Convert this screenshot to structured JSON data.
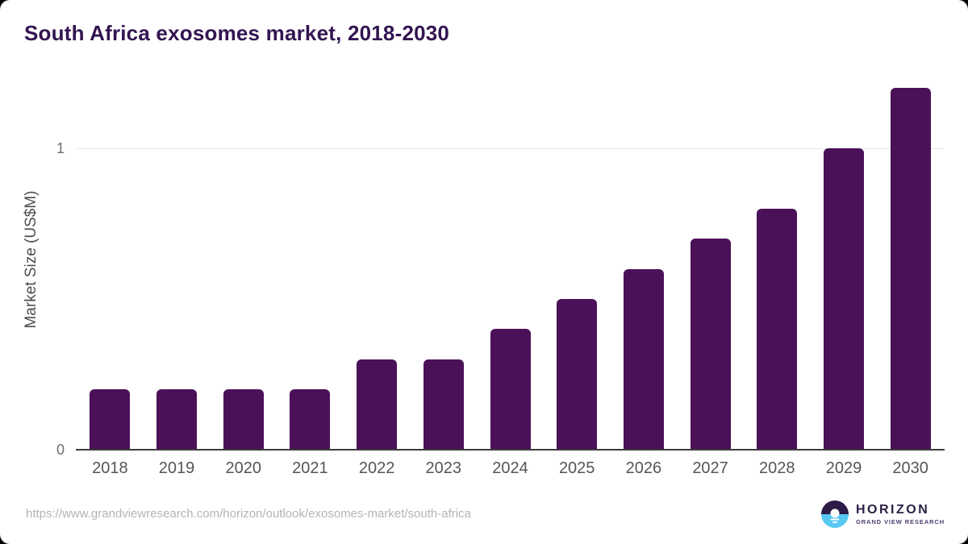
{
  "header": {
    "title": "South Africa exosomes market, 2018-2030"
  },
  "chart_data": {
    "type": "bar",
    "title": "South Africa exosomes market, 2018-2030",
    "categories": [
      "2018",
      "2019",
      "2020",
      "2021",
      "2022",
      "2023",
      "2024",
      "2025",
      "2026",
      "2027",
      "2028",
      "2029",
      "2030"
    ],
    "values": [
      0.2,
      0.2,
      0.2,
      0.2,
      0.3,
      0.3,
      0.4,
      0.5,
      0.6,
      0.7,
      0.8,
      1.0,
      1.2
    ],
    "xlabel": "",
    "ylabel": "Market Size (US$M)",
    "ylim": [
      0,
      1.2
    ],
    "yticks": [
      0,
      1
    ],
    "grid": "single horizontal gridline at y=1",
    "legend_position": "none",
    "bar_color": "#4b1158"
  },
  "y_axis": {
    "label": "Market Size (US$M)",
    "tick_top": "1",
    "tick_bottom": "0"
  },
  "footer": {
    "source_url": "https://www.grandviewresearch.com/horizon/outlook/exosomes-market/south-africa",
    "logo": {
      "brand": "HORIZON",
      "sub_brand": "GRAND VIEW RESEARCH"
    }
  },
  "colors": {
    "title_text": "#331551",
    "bar": "#4b1158",
    "axis_line": "#3c3c3c",
    "gridline": "#e7e7e7",
    "tick_text": "#6e6e6e",
    "category_text": "#555555",
    "url_text": "#b4b4b4",
    "logo_dark_purple": "#2e1a47",
    "logo_light_blue": "#56c8f2"
  }
}
